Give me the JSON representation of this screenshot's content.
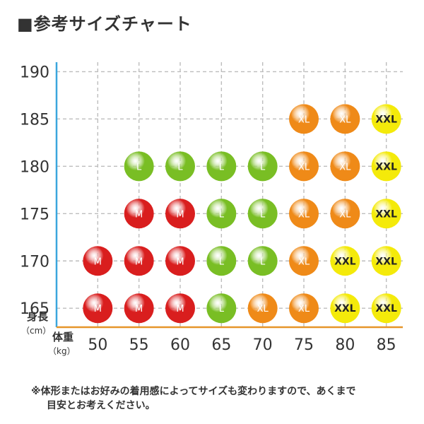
{
  "title": "■参考サイズチャート",
  "note_line1": "※体形またはお好みの着用感によってサイズも変わりますので、あくまで",
  "note_line2": "目安とお考えください。",
  "colors": {
    "M": "#d91e1e",
    "L": "#79be24",
    "XL": "#ef8a18",
    "XXL": "#f4ea0a",
    "y_axis": "#3aa6dd",
    "x_axis": "#e6952a",
    "grid": "#bdbdbd"
  },
  "chart_data": {
    "type": "scatter",
    "title": "■参考サイズチャート",
    "ylabel_line1": "身長",
    "ylabel_line2": "（cm）",
    "xlabel_line1": "体重",
    "xlabel_line2": "（kg）",
    "x_ticks": [
      50,
      55,
      60,
      65,
      70,
      75,
      80,
      85
    ],
    "y_ticks": [
      165,
      170,
      175,
      180,
      185,
      190
    ],
    "xlim": [
      45,
      87
    ],
    "ylim": [
      163,
      191
    ],
    "grid": true,
    "points": [
      {
        "x": 50,
        "y": 165,
        "size": "M"
      },
      {
        "x": 55,
        "y": 165,
        "size": "M"
      },
      {
        "x": 60,
        "y": 165,
        "size": "M"
      },
      {
        "x": 65,
        "y": 165,
        "size": "L"
      },
      {
        "x": 70,
        "y": 165,
        "size": "XL"
      },
      {
        "x": 75,
        "y": 165,
        "size": "XL"
      },
      {
        "x": 80,
        "y": 165,
        "size": "XXL"
      },
      {
        "x": 85,
        "y": 165,
        "size": "XXL"
      },
      {
        "x": 50,
        "y": 170,
        "size": "M"
      },
      {
        "x": 55,
        "y": 170,
        "size": "M"
      },
      {
        "x": 60,
        "y": 170,
        "size": "M"
      },
      {
        "x": 65,
        "y": 170,
        "size": "L"
      },
      {
        "x": 70,
        "y": 170,
        "size": "L"
      },
      {
        "x": 75,
        "y": 170,
        "size": "XL"
      },
      {
        "x": 80,
        "y": 170,
        "size": "XXL"
      },
      {
        "x": 85,
        "y": 170,
        "size": "XXL"
      },
      {
        "x": 55,
        "y": 175,
        "size": "M"
      },
      {
        "x": 60,
        "y": 175,
        "size": "M"
      },
      {
        "x": 65,
        "y": 175,
        "size": "L"
      },
      {
        "x": 70,
        "y": 175,
        "size": "L"
      },
      {
        "x": 75,
        "y": 175,
        "size": "XL"
      },
      {
        "x": 80,
        "y": 175,
        "size": "XL"
      },
      {
        "x": 85,
        "y": 175,
        "size": "XXL"
      },
      {
        "x": 55,
        "y": 180,
        "size": "L"
      },
      {
        "x": 60,
        "y": 180,
        "size": "L"
      },
      {
        "x": 65,
        "y": 180,
        "size": "L"
      },
      {
        "x": 70,
        "y": 180,
        "size": "L"
      },
      {
        "x": 75,
        "y": 180,
        "size": "XL"
      },
      {
        "x": 80,
        "y": 180,
        "size": "XL"
      },
      {
        "x": 85,
        "y": 180,
        "size": "XXL"
      },
      {
        "x": 75,
        "y": 185,
        "size": "XL"
      },
      {
        "x": 80,
        "y": 185,
        "size": "XL"
      },
      {
        "x": 85,
        "y": 185,
        "size": "XXL"
      }
    ]
  }
}
